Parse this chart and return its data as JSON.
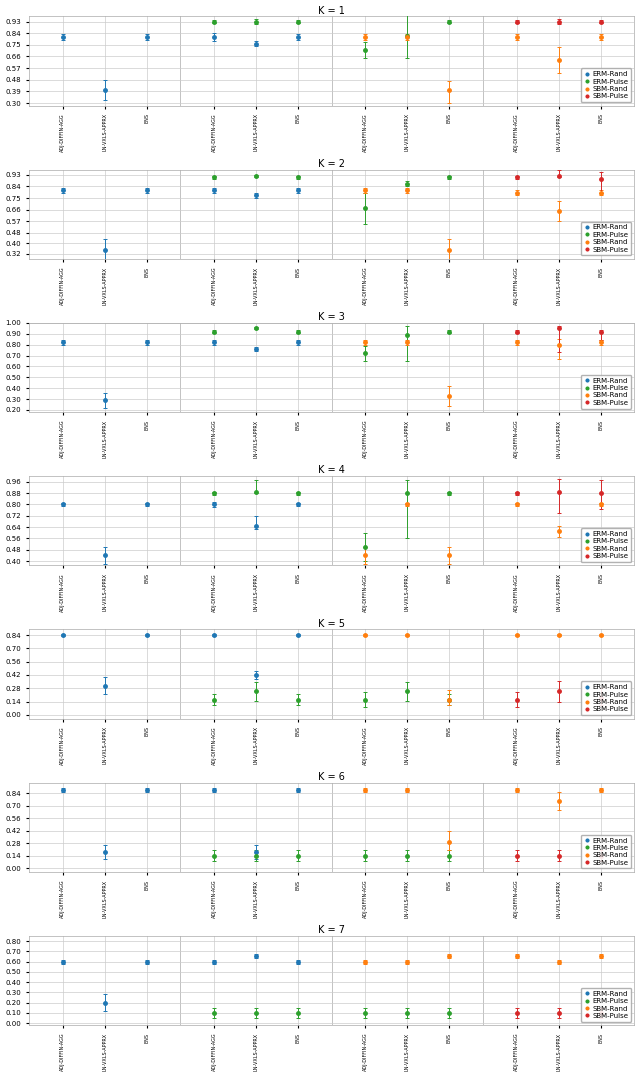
{
  "colors": {
    "ERM-Rand": "#1f77b4",
    "ERM-Pulse": "#2ca02c",
    "SBM-Rand": "#ff7f0e",
    "SBM-Pulse": "#d62728"
  },
  "x_tick_labels": [
    "ADJ-DIFFIN-AGG",
    "LN-VXLS-APPRX",
    "ENS",
    "ADJ-DIFFIN-AGG",
    "LN-VXLS-APPRX",
    "ENS",
    "ADJ-DIFFIN-AGG",
    "LN-VXLS-APPRX",
    "ENS",
    "ADJ-DIFFIN-AGG",
    "LN-VXLS-APPRX",
    "ENS"
  ],
  "plots": {
    "K=1": {
      "ylim": [
        0.28,
        0.97
      ],
      "yticks": [
        0.3,
        0.39,
        0.48,
        0.57,
        0.66,
        0.75,
        0.84,
        0.93
      ],
      "series": {
        "ERM-Rand": {
          "x": [
            0,
            1,
            2,
            3,
            4,
            5
          ],
          "m": [
            0.81,
            0.4,
            0.81,
            0.81,
            0.76,
            0.81
          ],
          "lo": [
            0.79,
            0.32,
            0.79,
            0.78,
            0.74,
            0.79
          ],
          "hi": [
            0.83,
            0.48,
            0.83,
            0.84,
            0.78,
            0.83
          ]
        },
        "ERM-Pulse": {
          "x": [
            3,
            4,
            5,
            6,
            7,
            8
          ],
          "m": [
            0.93,
            0.93,
            0.93,
            0.71,
            0.82,
            0.93
          ],
          "lo": [
            0.92,
            0.91,
            0.92,
            0.65,
            0.65,
            0.92
          ],
          "hi": [
            0.94,
            0.95,
            0.94,
            0.77,
            1.0,
            0.94
          ]
        },
        "SBM-Rand": {
          "x": [
            6,
            7,
            8,
            9,
            10,
            11
          ],
          "m": [
            0.81,
            0.81,
            0.4,
            0.81,
            0.63,
            0.81
          ],
          "lo": [
            0.79,
            0.79,
            0.3,
            0.79,
            0.53,
            0.79
          ],
          "hi": [
            0.83,
            0.83,
            0.47,
            0.83,
            0.73,
            0.83
          ]
        },
        "SBM-Pulse": {
          "x": [
            9,
            10,
            11
          ],
          "m": [
            0.93,
            0.93,
            0.93
          ],
          "lo": [
            0.92,
            0.91,
            0.92
          ],
          "hi": [
            0.94,
            0.95,
            0.94
          ]
        }
      }
    },
    "K=2": {
      "ylim": [
        0.28,
        0.97
      ],
      "yticks": [
        0.32,
        0.4,
        0.48,
        0.57,
        0.66,
        0.75,
        0.84,
        0.93
      ],
      "series": {
        "ERM-Rand": {
          "x": [
            0,
            1,
            2,
            3,
            4,
            5
          ],
          "m": [
            0.81,
            0.35,
            0.81,
            0.81,
            0.77,
            0.81
          ],
          "lo": [
            0.79,
            0.27,
            0.79,
            0.79,
            0.75,
            0.79
          ],
          "hi": [
            0.83,
            0.43,
            0.83,
            0.83,
            0.79,
            0.83
          ]
        },
        "ERM-Pulse": {
          "x": [
            3,
            4,
            5,
            6,
            7,
            8
          ],
          "m": [
            0.91,
            0.92,
            0.91,
            0.67,
            0.86,
            0.91
          ],
          "lo": [
            0.9,
            0.91,
            0.9,
            0.55,
            0.84,
            0.9
          ],
          "hi": [
            0.92,
            0.93,
            0.92,
            0.79,
            0.88,
            0.92
          ]
        },
        "SBM-Rand": {
          "x": [
            6,
            7,
            8,
            9,
            10,
            11
          ],
          "m": [
            0.81,
            0.81,
            0.35,
            0.79,
            0.65,
            0.79
          ],
          "lo": [
            0.79,
            0.79,
            0.27,
            0.77,
            0.57,
            0.77
          ],
          "hi": [
            0.83,
            0.83,
            0.43,
            0.81,
            0.73,
            0.81
          ]
        },
        "SBM-Pulse": {
          "x": [
            9,
            10,
            11
          ],
          "m": [
            0.91,
            0.92,
            0.9
          ],
          "lo": [
            0.9,
            0.91,
            0.79
          ],
          "hi": [
            0.92,
            0.97,
            0.95
          ]
        }
      }
    },
    "K=3": {
      "ylim": [
        0.18,
        1.0
      ],
      "yticks": [
        0.2,
        0.3,
        0.4,
        0.5,
        0.6,
        0.7,
        0.8,
        0.9,
        1.0
      ],
      "series": {
        "ERM-Rand": {
          "x": [
            0,
            1,
            2,
            3,
            4,
            5
          ],
          "m": [
            0.82,
            0.29,
            0.82,
            0.82,
            0.76,
            0.82
          ],
          "lo": [
            0.8,
            0.22,
            0.8,
            0.8,
            0.74,
            0.8
          ],
          "hi": [
            0.84,
            0.36,
            0.84,
            0.84,
            0.78,
            0.84
          ]
        },
        "ERM-Pulse": {
          "x": [
            3,
            4,
            5,
            6,
            7,
            8
          ],
          "m": [
            0.92,
            0.95,
            0.92,
            0.72,
            0.89,
            0.92
          ],
          "lo": [
            0.91,
            0.94,
            0.91,
            0.65,
            0.65,
            0.91
          ],
          "hi": [
            0.93,
            0.96,
            0.93,
            0.79,
            0.97,
            0.93
          ]
        },
        "SBM-Rand": {
          "x": [
            6,
            7,
            8,
            9,
            10,
            11
          ],
          "m": [
            0.82,
            0.82,
            0.33,
            0.82,
            0.8,
            0.82
          ],
          "lo": [
            0.8,
            0.8,
            0.24,
            0.8,
            0.67,
            0.8
          ],
          "hi": [
            0.84,
            0.84,
            0.42,
            0.84,
            0.85,
            0.84
          ]
        },
        "SBM-Pulse": {
          "x": [
            9,
            10,
            11
          ],
          "m": [
            0.92,
            0.95,
            0.92
          ],
          "lo": [
            0.91,
            0.73,
            0.84
          ],
          "hi": [
            0.93,
            0.97,
            0.93
          ]
        }
      }
    },
    "K=4": {
      "ylim": [
        0.37,
        1.0
      ],
      "yticks": [
        0.4,
        0.48,
        0.56,
        0.64,
        0.72,
        0.8,
        0.88,
        0.96
      ],
      "series": {
        "ERM-Rand": {
          "x": [
            0,
            1,
            2,
            3,
            4,
            5
          ],
          "m": [
            0.8,
            0.44,
            0.8,
            0.8,
            0.65,
            0.8
          ],
          "lo": [
            0.79,
            0.38,
            0.79,
            0.78,
            0.63,
            0.79
          ],
          "hi": [
            0.81,
            0.5,
            0.81,
            0.82,
            0.72,
            0.81
          ]
        },
        "ERM-Pulse": {
          "x": [
            3,
            4,
            5,
            6,
            7,
            8
          ],
          "m": [
            0.88,
            0.89,
            0.88,
            0.5,
            0.88,
            0.88
          ],
          "lo": [
            0.87,
            0.88,
            0.87,
            0.4,
            0.56,
            0.87
          ],
          "hi": [
            0.89,
            0.97,
            0.89,
            0.6,
            0.97,
            0.89
          ]
        },
        "SBM-Rand": {
          "x": [
            6,
            7,
            8,
            9,
            10,
            11
          ],
          "m": [
            0.44,
            0.8,
            0.44,
            0.8,
            0.61,
            0.8
          ],
          "lo": [
            0.38,
            0.79,
            0.38,
            0.79,
            0.57,
            0.79
          ],
          "hi": [
            0.5,
            0.81,
            0.5,
            0.81,
            0.65,
            0.81
          ]
        },
        "SBM-Pulse": {
          "x": [
            9,
            10,
            11
          ],
          "m": [
            0.88,
            0.89,
            0.88
          ],
          "lo": [
            0.87,
            0.74,
            0.77
          ],
          "hi": [
            0.89,
            0.98,
            0.97
          ]
        }
      }
    },
    "K=5": {
      "ylim": [
        -0.04,
        0.9
      ],
      "yticks": [
        0.0,
        0.14,
        0.28,
        0.42,
        0.56,
        0.7,
        0.84
      ],
      "series": {
        "ERM-Rand": {
          "x": [
            0,
            1,
            2,
            3,
            4,
            5
          ],
          "m": [
            0.84,
            0.3,
            0.84,
            0.84,
            0.42,
            0.84
          ],
          "lo": [
            0.83,
            0.22,
            0.83,
            0.83,
            0.38,
            0.83
          ],
          "hi": [
            0.85,
            0.4,
            0.85,
            0.85,
            0.46,
            0.85
          ]
        },
        "ERM-Pulse": {
          "x": [
            3,
            4,
            5,
            6,
            7,
            8
          ],
          "m": [
            0.16,
            0.25,
            0.16,
            0.16,
            0.25,
            0.16
          ],
          "lo": [
            0.1,
            0.15,
            0.1,
            0.08,
            0.15,
            0.1
          ],
          "hi": [
            0.22,
            0.35,
            0.22,
            0.24,
            0.35,
            0.22
          ]
        },
        "SBM-Rand": {
          "x": [
            6,
            7,
            8,
            9,
            10,
            11
          ],
          "m": [
            0.84,
            0.84,
            0.16,
            0.84,
            0.84,
            0.84
          ],
          "lo": [
            0.83,
            0.83,
            0.1,
            0.83,
            0.83,
            0.83
          ],
          "hi": [
            0.85,
            0.85,
            0.26,
            0.85,
            0.85,
            0.85
          ]
        },
        "SBM-Pulse": {
          "x": [
            9,
            10,
            11
          ],
          "m": [
            0.16,
            0.25,
            0.18
          ],
          "lo": [
            0.08,
            0.14,
            0.1
          ],
          "hi": [
            0.24,
            0.36,
            0.28
          ]
        }
      }
    },
    "K=6": {
      "ylim": [
        -0.04,
        0.96
      ],
      "yticks": [
        0.0,
        0.14,
        0.28,
        0.42,
        0.56,
        0.7,
        0.84
      ],
      "series": {
        "ERM-Rand": {
          "x": [
            0,
            1,
            2,
            3,
            4,
            5
          ],
          "m": [
            0.88,
            0.18,
            0.88,
            0.88,
            0.18,
            0.88
          ],
          "lo": [
            0.86,
            0.1,
            0.86,
            0.86,
            0.1,
            0.86
          ],
          "hi": [
            0.9,
            0.26,
            0.9,
            0.9,
            0.26,
            0.9
          ]
        },
        "ERM-Pulse": {
          "x": [
            3,
            4,
            5,
            6,
            7,
            8
          ],
          "m": [
            0.14,
            0.14,
            0.14,
            0.14,
            0.14,
            0.14
          ],
          "lo": [
            0.08,
            0.08,
            0.08,
            0.08,
            0.08,
            0.08
          ],
          "hi": [
            0.2,
            0.2,
            0.2,
            0.2,
            0.2,
            0.2
          ]
        },
        "SBM-Rand": {
          "x": [
            6,
            7,
            8,
            9,
            10,
            11
          ],
          "m": [
            0.88,
            0.88,
            0.3,
            0.88,
            0.75,
            0.88
          ],
          "lo": [
            0.86,
            0.86,
            0.2,
            0.86,
            0.65,
            0.86
          ],
          "hi": [
            0.9,
            0.9,
            0.42,
            0.9,
            0.85,
            0.9
          ]
        },
        "SBM-Pulse": {
          "x": [
            9,
            10,
            11
          ],
          "m": [
            0.14,
            0.14,
            0.14
          ],
          "lo": [
            0.08,
            0.08,
            0.08
          ],
          "hi": [
            0.2,
            0.2,
            0.2
          ]
        }
      }
    },
    "K=7": {
      "ylim": [
        -0.02,
        0.85
      ],
      "yticks": [
        0.0,
        0.1,
        0.2,
        0.3,
        0.4,
        0.5,
        0.6,
        0.7,
        0.8
      ],
      "series": {
        "ERM-Rand": {
          "x": [
            0,
            1,
            2,
            3,
            4,
            5
          ],
          "m": [
            0.6,
            0.2,
            0.6,
            0.6,
            0.65,
            0.6
          ],
          "lo": [
            0.58,
            0.12,
            0.58,
            0.58,
            0.63,
            0.58
          ],
          "hi": [
            0.62,
            0.28,
            0.62,
            0.62,
            0.67,
            0.62
          ]
        },
        "ERM-Pulse": {
          "x": [
            3,
            4,
            5,
            6,
            7,
            8
          ],
          "m": [
            0.1,
            0.1,
            0.1,
            0.1,
            0.1,
            0.1
          ],
          "lo": [
            0.05,
            0.05,
            0.05,
            0.05,
            0.05,
            0.05
          ],
          "hi": [
            0.15,
            0.15,
            0.15,
            0.15,
            0.15,
            0.15
          ]
        },
        "SBM-Rand": {
          "x": [
            6,
            7,
            8,
            9,
            10,
            11
          ],
          "m": [
            0.6,
            0.6,
            0.65,
            0.65,
            0.6,
            0.65
          ],
          "lo": [
            0.58,
            0.58,
            0.63,
            0.63,
            0.58,
            0.63
          ],
          "hi": [
            0.62,
            0.62,
            0.67,
            0.67,
            0.62,
            0.67
          ]
        },
        "SBM-Pulse": {
          "x": [
            9,
            10,
            11
          ],
          "m": [
            0.1,
            0.1,
            0.1
          ],
          "lo": [
            0.05,
            0.05,
            0.05
          ],
          "hi": [
            0.15,
            0.15,
            0.15
          ]
        }
      }
    }
  }
}
